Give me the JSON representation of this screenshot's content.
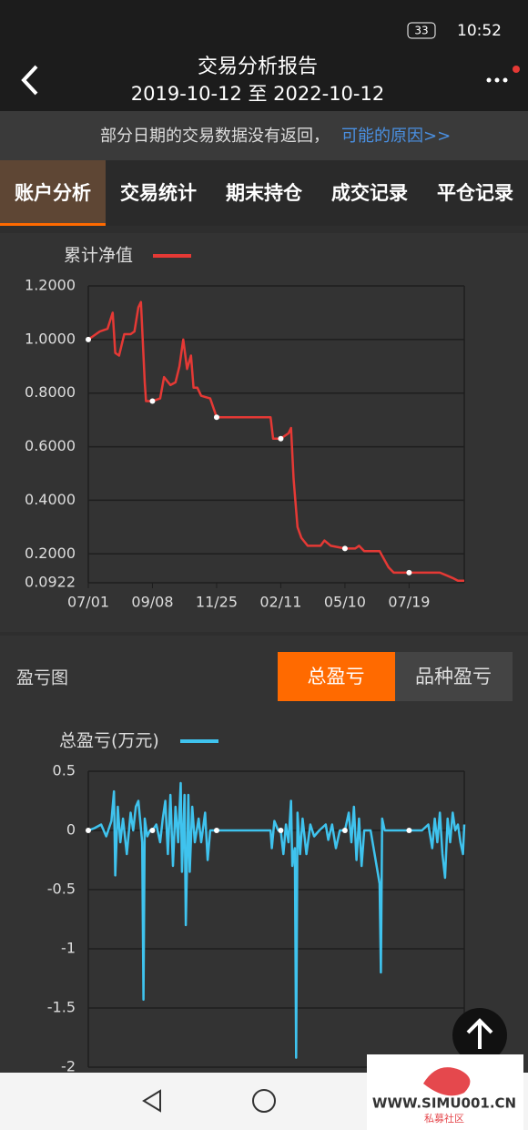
{
  "status_bar": {
    "time": "10:52",
    "battery": "33"
  },
  "header": {
    "title": "交易分析报告",
    "subtitle": "2019-10-12 至 2022-10-12"
  },
  "notice": {
    "text": "部分日期的交易数据没有返回，",
    "link": "可能的原因>>"
  },
  "tabs": [
    "账户分析",
    "交易统计",
    "期末持仓",
    "成交记录",
    "平仓记录"
  ],
  "pnl_section": {
    "title": "盈亏图",
    "toggle": [
      "总盈亏",
      "品种盈亏"
    ]
  },
  "watermark": {
    "url": "WWW.SIMU001.CN",
    "name": "私募社区"
  },
  "chart_data": [
    {
      "type": "line",
      "x": [
        0,
        9,
        15,
        19,
        21,
        24,
        28,
        33,
        36,
        39,
        41,
        44,
        45,
        50,
        56,
        59,
        64,
        68,
        71,
        74,
        77,
        80,
        82,
        85,
        88,
        95,
        100,
        116,
        142,
        144,
        150,
        156,
        158,
        160,
        163,
        166,
        171,
        181,
        184,
        189,
        200,
        208,
        211,
        215,
        227,
        234,
        238,
        250,
        274,
        279,
        284,
        288,
        291,
        293
      ],
      "series": [
        {
          "name": "累计净值",
          "color": "#e53935",
          "values": [
            1.0,
            1.03,
            1.04,
            1.1,
            0.95,
            0.94,
            1.02,
            1.02,
            1.03,
            1.12,
            1.14,
            0.84,
            0.77,
            0.77,
            0.78,
            0.86,
            0.83,
            0.84,
            0.9,
            1.0,
            0.89,
            0.94,
            0.82,
            0.82,
            0.79,
            0.78,
            0.71,
            0.71,
            0.71,
            0.63,
            0.63,
            0.65,
            0.67,
            0.48,
            0.3,
            0.26,
            0.23,
            0.23,
            0.25,
            0.23,
            0.22,
            0.22,
            0.23,
            0.21,
            0.21,
            0.15,
            0.13,
            0.13,
            0.13,
            0.12,
            0.11,
            0.1,
            0.1,
            0.1
          ]
        }
      ],
      "xlim": [
        0,
        293
      ],
      "xticks": [
        {
          "value": 0,
          "label": "07/01"
        },
        {
          "value": 50,
          "label": "09/08"
        },
        {
          "value": 100,
          "label": "11/25"
        },
        {
          "value": 150,
          "label": "02/11"
        },
        {
          "value": 200,
          "label": "05/10"
        },
        {
          "value": 250,
          "label": "07/19"
        }
      ],
      "ylim": [
        0.0922,
        1.2
      ],
      "yticks": [
        {
          "value": 0.0922,
          "label": "0.0922"
        },
        {
          "value": 0.2,
          "label": "0.2000"
        },
        {
          "value": 0.4,
          "label": "0.4000"
        },
        {
          "value": 0.6,
          "label": "0.6000"
        },
        {
          "value": 0.8,
          "label": "0.8000"
        },
        {
          "value": 1.0,
          "label": "1.0000"
        },
        {
          "value": 1.2,
          "label": "1.2000"
        }
      ],
      "grid": true
    },
    {
      "type": "line",
      "x": [
        0,
        5,
        10,
        14,
        18,
        20,
        21,
        23,
        25,
        27,
        30,
        33,
        35,
        37,
        39,
        42,
        43,
        44,
        46,
        48,
        50,
        53,
        56,
        58,
        60,
        62,
        64,
        66,
        68,
        70,
        72,
        73,
        75,
        76,
        78,
        79,
        81,
        83,
        86,
        88,
        91,
        93,
        95,
        100,
        120,
        142,
        143,
        145,
        148,
        150,
        152,
        154,
        156,
        158,
        159,
        160,
        161,
        162,
        163,
        165,
        167,
        170,
        173,
        176,
        180,
        185,
        187,
        190,
        193,
        196,
        200,
        203,
        205,
        207,
        209,
        211,
        213,
        215,
        220,
        227,
        228,
        229,
        231,
        240,
        250,
        260,
        265,
        268,
        270,
        272,
        274,
        276,
        278,
        280,
        282,
        284,
        286,
        288,
        290,
        292,
        293
      ],
      "series": [
        {
          "name": "总盈亏(万元)",
          "color": "#3fc3ee",
          "values": [
            0,
            0.02,
            0.05,
            -0.05,
            0.08,
            0.33,
            -0.38,
            0.2,
            -0.1,
            0.1,
            -0.2,
            0.15,
            0,
            0.2,
            0.25,
            -0.1,
            -1.43,
            0.1,
            -0.05,
            0,
            0,
            0.05,
            -0.1,
            0.1,
            0.25,
            -0.2,
            0.3,
            -0.3,
            0.2,
            -0.1,
            0.4,
            -0.35,
            0.3,
            -0.8,
            0.3,
            -0.35,
            0.2,
            -0.1,
            0.1,
            -0.1,
            0.15,
            -0.25,
            0,
            0,
            0,
            0,
            -0.15,
            0.08,
            0,
            0,
            -0.2,
            0.05,
            -0.1,
            0.25,
            -0.3,
            -0.2,
            -0.15,
            -1.92,
            0.15,
            -0.2,
            0.1,
            -0.2,
            0.05,
            -0.05,
            0,
            0.05,
            -0.08,
            0.05,
            -0.15,
            0,
            0,
            0.15,
            -0.1,
            0.2,
            -0.25,
            0.1,
            -0.3,
            0,
            0,
            -0.45,
            -1.2,
            0.1,
            0,
            0,
            0,
            0,
            0.05,
            -0.15,
            0.1,
            -0.1,
            0.15,
            -0.2,
            -0.4,
            0.1,
            -0.1,
            0.15,
            0,
            0.05,
            -0.1,
            -0.2,
            0.05
          ]
        }
      ],
      "xlim": [
        0,
        293
      ],
      "ylim": [
        -2,
        0.5
      ],
      "yticks": [
        -2,
        -1.5,
        -1,
        -0.5,
        0,
        0.5
      ],
      "grid": true
    }
  ]
}
